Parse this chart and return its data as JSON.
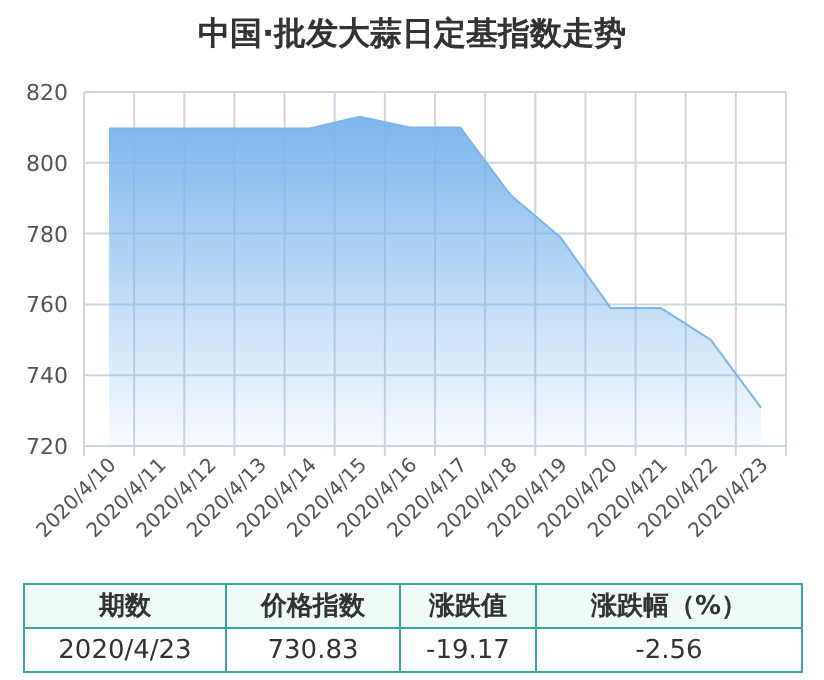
{
  "chart_data": {
    "type": "area",
    "title": "中国·批发大蒜日定基指数走势",
    "categories": [
      "2020/4/10",
      "2020/4/11",
      "2020/4/12",
      "2020/4/13",
      "2020/4/14",
      "2020/4/15",
      "2020/4/16",
      "2020/4/17",
      "2020/4/18",
      "2020/4/19",
      "2020/4/20",
      "2020/4/21",
      "2020/4/22",
      "2020/4/23"
    ],
    "series": [
      {
        "color": "#7cb5ec",
        "values": [
          809.7,
          809.7,
          809.7,
          809.7,
          809.7,
          813,
          810,
          810,
          791,
          779,
          759,
          759,
          750,
          730.83
        ]
      }
    ],
    "ylim": [
      720,
      820
    ],
    "yticks": [
      720,
      740,
      760,
      780,
      800,
      820
    ],
    "grid": true,
    "annotations": [
      "期数",
      "价格指数",
      "涨跌值",
      "涨跌幅（%）",
      "2020/4/23",
      "730.83",
      "-19.17",
      "-2.56"
    ]
  }
}
